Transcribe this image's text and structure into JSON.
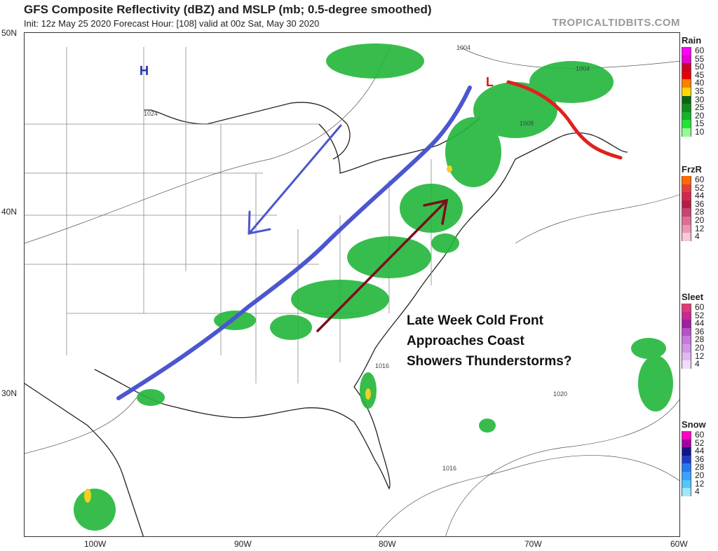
{
  "header": {
    "title": "GFS Composite Reflectivity (dBZ) and MSLP (mb; 0.5-degree smoothed)",
    "subtitle": "Init: 12z May 25 2020   Forecast Hour: [108]   valid at 00z Sat, May 30 2020",
    "brand": "TROPICALTIDBITS.COM"
  },
  "axes": {
    "lat_labels": [
      "50N",
      "40N",
      "30N"
    ],
    "lon_labels": [
      "100W",
      "90W",
      "80W",
      "70W",
      "60W"
    ]
  },
  "legends": [
    {
      "title": "Rain",
      "levels": [
        "60",
        "55",
        "50",
        "45",
        "40",
        "35",
        "30",
        "25",
        "20",
        "15",
        "10"
      ],
      "colors": [
        "#ff00ff",
        "#e600cc",
        "#c80028",
        "#e60000",
        "#ff7f00",
        "#ffd800",
        "#0a6414",
        "#108c1c",
        "#14b428",
        "#1ee632",
        "#96fa96"
      ]
    },
    {
      "title": "FrzR",
      "levels": [
        "60",
        "52",
        "44",
        "36",
        "28",
        "20",
        "12",
        "4"
      ],
      "colors": [
        "#ff6a00",
        "#e63c3c",
        "#d2284f",
        "#b41e46",
        "#c8466e",
        "#dc6e96",
        "#eb96b4",
        "#f6c8d8"
      ]
    },
    {
      "title": "Sleet",
      "levels": [
        "60",
        "52",
        "44",
        "36",
        "28",
        "20",
        "12",
        "4"
      ],
      "colors": [
        "#dc3c78",
        "#c82896",
        "#a01ea0",
        "#b450c8",
        "#c878dc",
        "#d296e6",
        "#e1b9f0",
        "#f0dcfa"
      ]
    },
    {
      "title": "Snow",
      "levels": [
        "60",
        "52",
        "44",
        "36",
        "28",
        "20",
        "12",
        "4"
      ],
      "colors": [
        "#ff00c8",
        "#a000a0",
        "#14148c",
        "#1e3cc8",
        "#2878f0",
        "#3ca0ff",
        "#50c8ff",
        "#a0e6ff"
      ]
    }
  ],
  "pressure_labels": [
    "1024",
    "1004",
    "1004",
    "1008",
    "1016",
    "1020",
    "1016"
  ],
  "centers": {
    "high": "H",
    "low": "L"
  },
  "annotation": {
    "lines": [
      "Late Week Cold Front",
      "Approaches Coast",
      "Showers Thunderstorms?"
    ]
  },
  "colors": {
    "front_blue": "#4b56cf",
    "front_red": "#e02020",
    "arrow_blue": "#4b56cf",
    "arrow_maroon": "#7a0f1c",
    "precip_green": "#22b63a"
  }
}
